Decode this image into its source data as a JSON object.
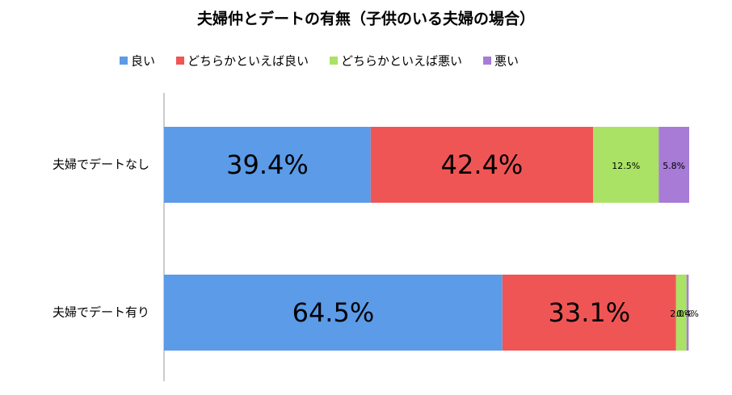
{
  "chart_data": {
    "type": "stacked-bar-horizontal",
    "title": "夫婦仲とデートの有無（子供のいる夫婦の場合）",
    "categories": [
      "夫婦でデートなし",
      "夫婦でデート有り"
    ],
    "series": [
      {
        "name": "良い",
        "color": "#5b9be8",
        "values": [
          39.4,
          64.5
        ],
        "value_labels": [
          "39.4%",
          "64.5%"
        ]
      },
      {
        "name": "どちらかといえば良い",
        "color": "#f05555",
        "values": [
          42.4,
          33.1
        ],
        "value_labels": [
          "42.4%",
          "33.1%"
        ]
      },
      {
        "name": "どちらかといえば悪い",
        "color": "#a9e264",
        "values": [
          12.5,
          2.0
        ],
        "value_labels": [
          "12.5%",
          "2.0%"
        ]
      },
      {
        "name": "悪い",
        "color": "#a77bd6",
        "values": [
          5.8,
          0.4
        ],
        "value_labels": [
          "5.8%",
          "0.4%"
        ]
      }
    ],
    "legend": "top"
  }
}
